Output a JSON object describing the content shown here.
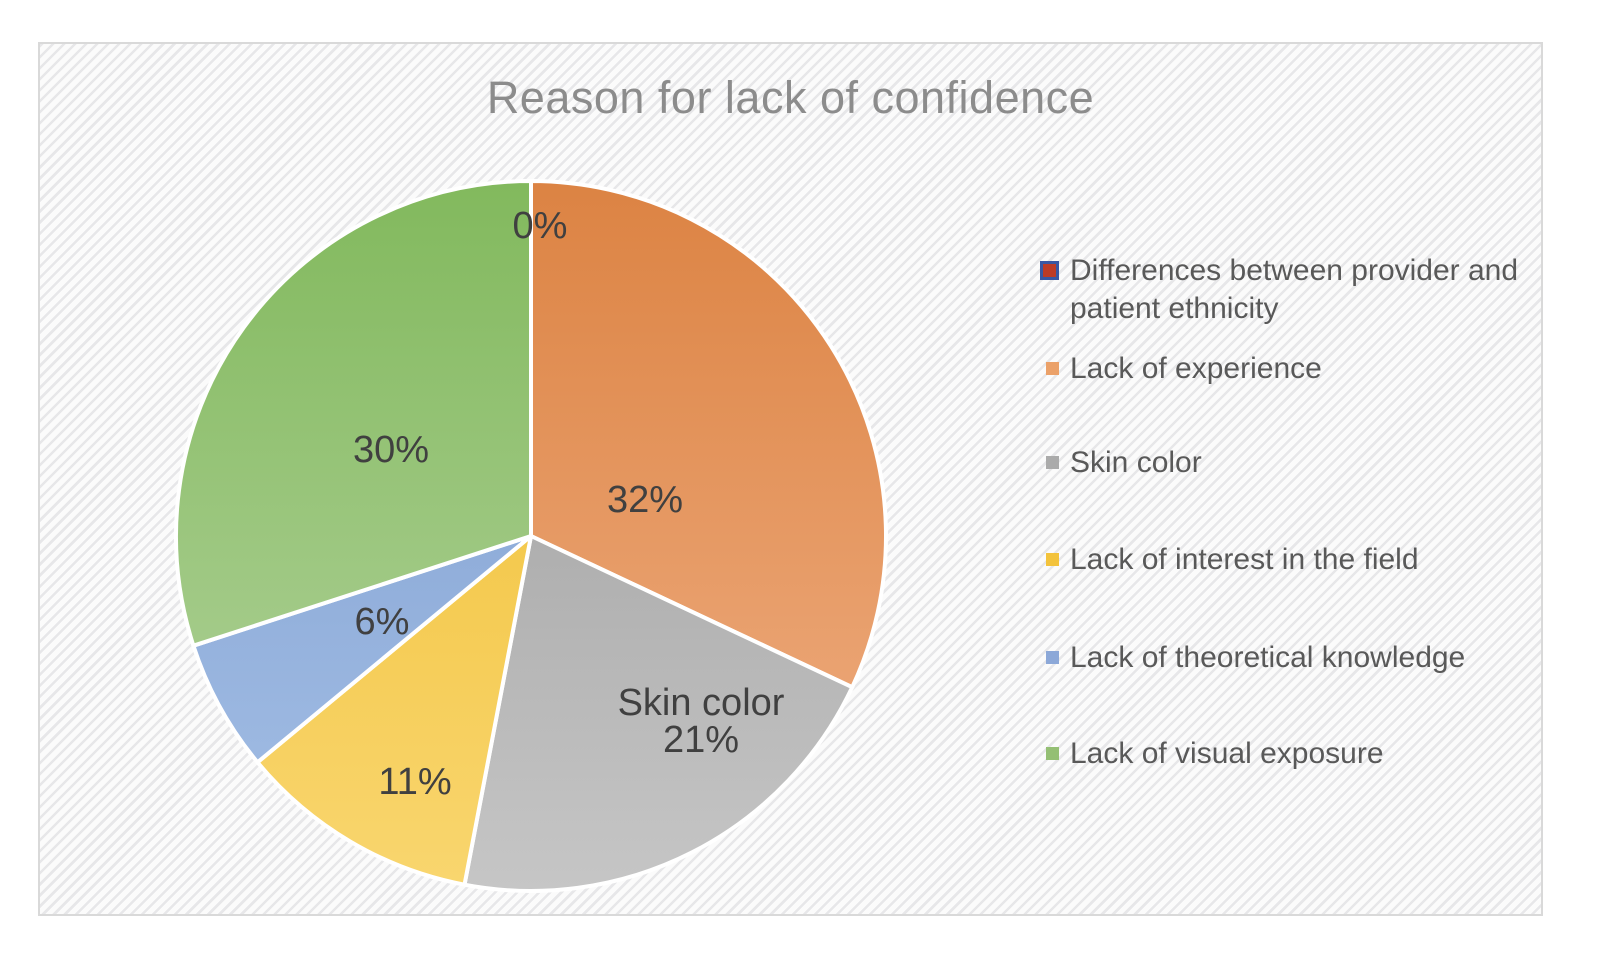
{
  "chart_data": {
    "type": "pie",
    "title": "Reason for lack of confidence",
    "legend_position": "right",
    "total": 100,
    "series": [
      {
        "name": "Differences between provider and patient ethnicity",
        "name_lines": [
          "Differences between provider and",
          "patient ethnicity"
        ],
        "value": 0,
        "label_lines": [
          "0%"
        ],
        "color": "#BE3B26",
        "gradient": [
          "#BE3B26",
          "#BE3B26"
        ],
        "swatch_border": "#3A57A3"
      },
      {
        "name": "Lack of experience",
        "value": 32,
        "label_lines": [
          "32%"
        ],
        "color": "#EBA169",
        "gradient": [
          "#DC8343",
          "#F0B085"
        ]
      },
      {
        "name": "Skin color",
        "value": 21,
        "label_lines": [
          "Skin color",
          "21%"
        ],
        "color": "#ABABAB",
        "gradient": [
          "#979797",
          "#C6C6C6"
        ]
      },
      {
        "name": "Lack of interest in the field",
        "value": 11,
        "label_lines": [
          "11%"
        ],
        "color": "#F3C33C",
        "gradient": [
          "#EFBC2C",
          "#F9D66F"
        ]
      },
      {
        "name": "Lack of theoretical knowledge",
        "value": 6,
        "label_lines": [
          "6%"
        ],
        "color": "#8CA8D8",
        "gradient": [
          "#7B9BCD",
          "#A4BFE6"
        ]
      },
      {
        "name": "Lack of visual exposure",
        "value": 30,
        "label_lines": [
          "30%"
        ],
        "color": "#94BF74",
        "gradient": [
          "#82B95D",
          "#B5D4A0"
        ]
      }
    ]
  }
}
